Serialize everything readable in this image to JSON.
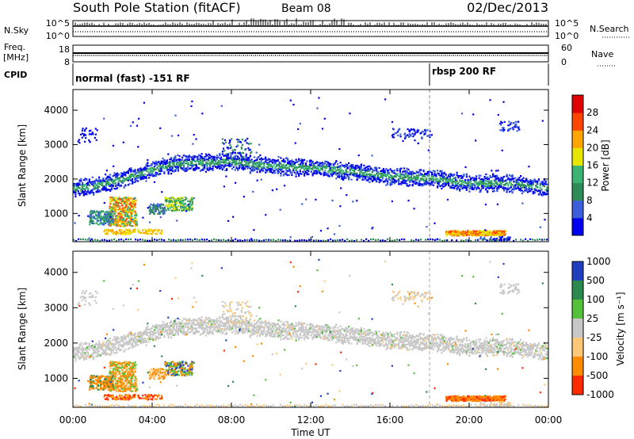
{
  "header": {
    "station": "South Pole Station (fitACF)",
    "beam": "Beam 08",
    "date": "02/Dec/2013"
  },
  "strips": {
    "nsky": {
      "left_label": "N.Sky",
      "right_label": "N.Search",
      "top_tick": "10^5",
      "bottom_tick": "10^0"
    },
    "freq": {
      "left_label_1": "Freq.",
      "left_label_2": "[MHz]",
      "right_label": "Nave",
      "left_top": "18",
      "left_bottom": "8",
      "right_top": "60",
      "right_bottom": "0"
    },
    "cpid": {
      "label": "CPID",
      "mode_1": "normal (fast) -151 RF",
      "mode_2": "rbsp 200 RF"
    }
  },
  "axes": {
    "ylabel": "Slant Range [km]",
    "yticks": [
      "1000",
      "2000",
      "3000",
      "4000"
    ],
    "xlabel": "Time UT",
    "xticks": [
      "00:00",
      "04:00",
      "08:00",
      "12:00",
      "16:00",
      "20:00",
      "00:00"
    ]
  },
  "colorbars": {
    "power": {
      "label": "Power [dB]",
      "ticks": [
        "4",
        "8",
        "12",
        "16",
        "20",
        "24",
        "28"
      ],
      "colors": [
        "#0000ee",
        "#3a5fd8",
        "#2e8b57",
        "#3cb371",
        "#e6e600",
        "#ffa500",
        "#ff4500",
        "#e00000"
      ]
    },
    "velocity": {
      "label": "Velocity [m s⁻¹]",
      "ticks": [
        "1000",
        "500",
        "100",
        "25",
        "-25",
        "-100",
        "-500",
        "-1000"
      ],
      "colors": [
        "#1f3fbf",
        "#2d8a4e",
        "#55c03a",
        "#c8c8c8",
        "#ffc878",
        "#ff8c00",
        "#ff2a00"
      ]
    }
  },
  "chart_data": [
    {
      "type": "line",
      "title": "N.Sky / N.Search",
      "x_range_hours": [
        0,
        24
      ],
      "series": [
        {
          "name": "N.Sky",
          "y_log10_typical": 0.3,
          "style": "solid"
        },
        {
          "name": "N.Search",
          "y_log10_typical": 0.6,
          "style": "dotted"
        }
      ]
    },
    {
      "type": "line",
      "title": "Freq / Nave",
      "x_range_hours": [
        0,
        24
      ],
      "series": [
        {
          "name": "Freq.",
          "y_approx": 12,
          "ylim": [
            8,
            18
          ],
          "style": "solid"
        },
        {
          "name": "Nave",
          "y_approx": 28,
          "ylim": [
            0,
            60
          ],
          "style": "dotted"
        }
      ]
    },
    {
      "type": "heatmap",
      "title": "Power",
      "xlabel": "Time UT",
      "ylabel": "Slant Range [km]",
      "x_range_hours": [
        0,
        24
      ],
      "ylim": [
        180,
        4600
      ],
      "colorbar": "Power [dB]",
      "bands": [
        {
          "name": "main F-region band",
          "ridge_km": [
            [
              0,
              1750
            ],
            [
              1,
              1800
            ],
            [
              2,
              1950
            ],
            [
              3,
              2100
            ],
            [
              4,
              2300
            ],
            [
              5,
              2450
            ],
            [
              6,
              2500
            ],
            [
              7,
              2500
            ],
            [
              8,
              2550
            ],
            [
              9,
              2450
            ],
            [
              10,
              2400
            ],
            [
              12,
              2350
            ],
            [
              14,
              2250
            ],
            [
              16,
              2100
            ],
            [
              18,
              2050
            ],
            [
              20,
              1900
            ],
            [
              22,
              1900
            ],
            [
              24,
              1750
            ]
          ],
          "power_db": 10
        },
        {
          "name": "low-range patch 02-03 UT",
          "x_hours": [
            1.8,
            3.2
          ],
          "range_km": [
            600,
            1500
          ],
          "power_db": 22
        },
        {
          "name": "near-range echoes 19-22 UT",
          "x_hours": [
            18.8,
            21.8
          ],
          "range_km": [
            350,
            550
          ],
          "power_db": 24
        }
      ]
    },
    {
      "type": "heatmap",
      "title": "Velocity",
      "xlabel": "Time UT",
      "ylabel": "Slant Range [km]",
      "x_range_hours": [
        0,
        24
      ],
      "ylim": [
        180,
        4600
      ],
      "colorbar": "Velocity [m s⁻¹]",
      "bands": [
        {
          "name": "main band (near zero, ground scatter)",
          "velocity": 0
        },
        {
          "name": "low-range patch 01-03 UT",
          "x_hours": [
            0.8,
            3.2
          ],
          "range_km": [
            600,
            1500
          ],
          "velocity": -150
        },
        {
          "name": "near-range echoes 19-22 UT",
          "x_hours": [
            18.8,
            21.8
          ],
          "range_km": [
            350,
            550
          ],
          "velocity": -200
        }
      ]
    }
  ]
}
